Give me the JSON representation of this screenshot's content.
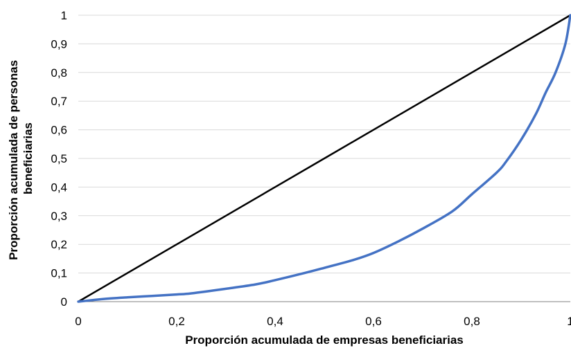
{
  "chart_data": {
    "type": "line",
    "title": "",
    "xlabel": "Proporción acumulada de empresas beneficiarias",
    "ylabel_lines": [
      "Proporción acumulada de personas",
      "beneficiarias"
    ],
    "xlim": [
      0,
      1
    ],
    "ylim": [
      0,
      1
    ],
    "x_ticks": [
      0,
      0.2,
      0.4,
      0.6,
      0.8,
      1
    ],
    "x_tick_labels": [
      "0",
      "0,2",
      "0,4",
      "0,6",
      "0,8",
      "1"
    ],
    "y_ticks": [
      0,
      0.1,
      0.2,
      0.3,
      0.4,
      0.5,
      0.6,
      0.7,
      0.8,
      0.9,
      1
    ],
    "y_tick_labels": [
      "0",
      "0,1",
      "0,2",
      "0,3",
      "0,4",
      "0,5",
      "0,6",
      "0,7",
      "0,8",
      "0,9",
      "1"
    ],
    "grid": "horizontal",
    "legend": "none",
    "series": [
      {
        "color": "#000000",
        "x": [
          0,
          1
        ],
        "y": [
          0,
          1
        ]
      },
      {
        "color": "#4472C4",
        "x": [
          0,
          0.05,
          0.1,
          0.15,
          0.2,
          0.23,
          0.3,
          0.36,
          0.4,
          0.46,
          0.5,
          0.56,
          0.6,
          0.65,
          0.7,
          0.76,
          0.8,
          0.85,
          0.87,
          0.9,
          0.93,
          0.95,
          0.97,
          0.99,
          1.0
        ],
        "y": [
          0,
          0.009,
          0.015,
          0.02,
          0.025,
          0.029,
          0.045,
          0.06,
          0.075,
          0.1,
          0.118,
          0.146,
          0.17,
          0.21,
          0.255,
          0.315,
          0.375,
          0.45,
          0.49,
          0.565,
          0.655,
          0.73,
          0.8,
          0.9,
          1.0
        ]
      }
    ]
  }
}
